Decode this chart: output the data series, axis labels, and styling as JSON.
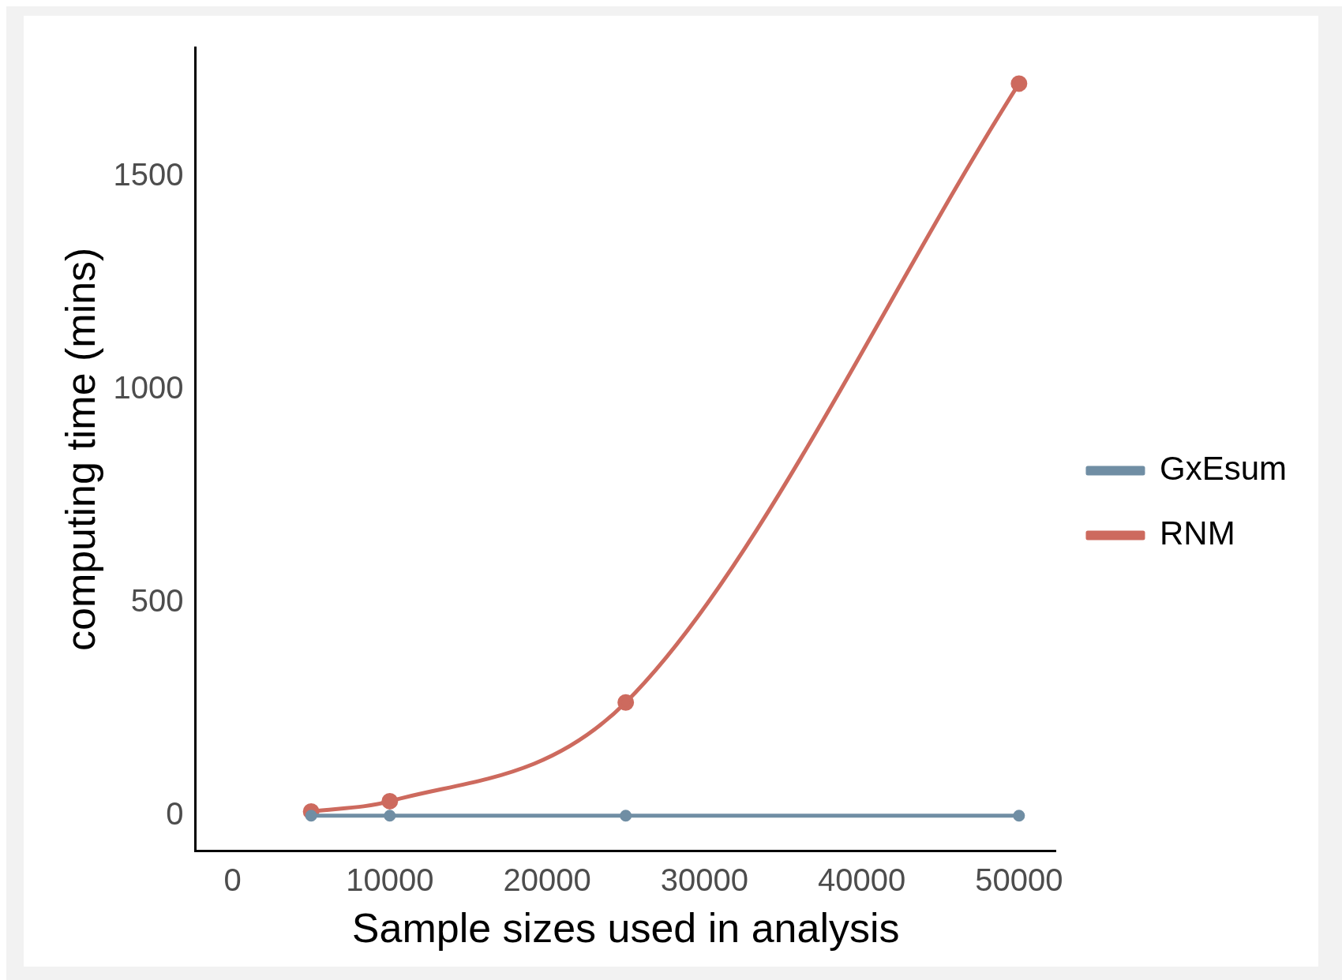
{
  "chart_data": {
    "type": "line",
    "xlabel": "Sample sizes used in analysis",
    "ylabel": "computing time (mins)",
    "x": [
      5000,
      10000,
      25000,
      50000
    ],
    "series": [
      {
        "name": "GxEsum",
        "color": "#708ea4",
        "values": [
          0,
          0,
          0,
          0
        ]
      },
      {
        "name": "RNM",
        "color": "#cd6a5e",
        "values": [
          10,
          34,
          266,
          1719
        ]
      }
    ],
    "xlim": [
      -2365,
      52365
    ],
    "xticks": [
      0,
      10000,
      20000,
      30000,
      40000,
      50000
    ],
    "ylim": [
      -83,
      1804
    ],
    "yticks": [
      0,
      500,
      1000,
      1500
    ],
    "grid": false,
    "legend": "right",
    "marker": "circle",
    "line_style": "solid"
  }
}
